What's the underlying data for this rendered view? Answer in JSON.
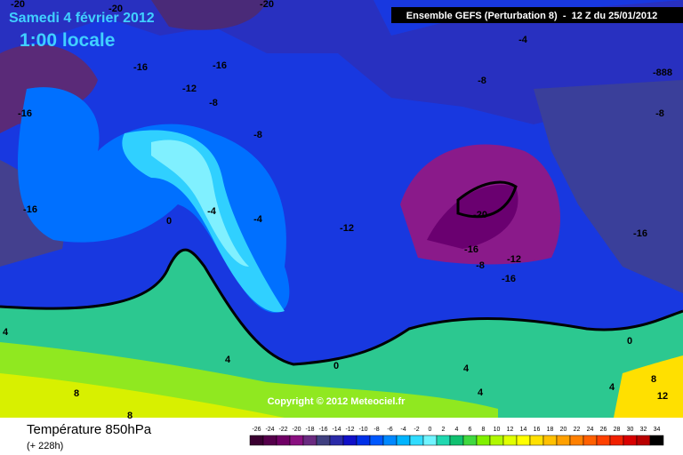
{
  "header": {
    "date": "Samedi 4 février 2012",
    "time": "1:00 locale",
    "model": "Ensemble GEFS (Perturbation 8)  -  12 Z du 25/01/2012"
  },
  "map": {
    "contour_labels": [
      -20,
      -20,
      -20,
      -16,
      -16,
      -12,
      -8,
      -16,
      -8,
      -16,
      0,
      -4,
      -4,
      -12,
      -20,
      -16,
      -12,
      -8,
      -16,
      -16,
      -8,
      -4,
      -888,
      -8,
      0,
      4,
      4,
      8,
      8,
      4,
      4,
      0,
      4,
      8,
      12
    ],
    "copyright": "Copyright © 2012 Meteociel.fr"
  },
  "footer": {
    "variable": "Température 850hPa",
    "lead": "(+ 228h)"
  },
  "legend": {
    "values": [
      -26,
      -24,
      -22,
      -20,
      -18,
      -16,
      -14,
      -12,
      -10,
      -8,
      -6,
      -4,
      -2,
      0,
      2,
      4,
      6,
      8,
      10,
      12,
      14,
      16,
      18,
      20,
      22,
      24,
      26,
      28,
      30,
      32,
      34
    ],
    "colors": [
      "#3a0030",
      "#55004a",
      "#700065",
      "#8a1080",
      "#6a2a80",
      "#404080",
      "#2a2aa8",
      "#1010c8",
      "#0030e8",
      "#0058ff",
      "#0088ff",
      "#00b4ff",
      "#30dcff",
      "#70f4ff",
      "#20d8b0",
      "#10c070",
      "#40d840",
      "#80f000",
      "#b0f800",
      "#e0ff00",
      "#ffff00",
      "#ffe000",
      "#ffc000",
      "#ffa000",
      "#ff8000",
      "#ff6000",
      "#ff4000",
      "#f02000",
      "#d80000",
      "#b80000",
      "#000000"
    ]
  }
}
